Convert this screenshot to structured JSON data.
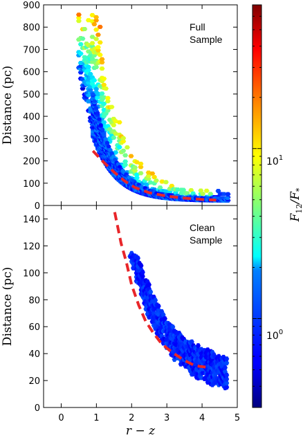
{
  "chart_data": [
    {
      "panel": "top",
      "type": "heatmap",
      "annotation": [
        "Full",
        "Sample"
      ],
      "xlabel": "",
      "ylabel": "Distance (pc)",
      "xlim": [
        -0.5,
        5
      ],
      "ylim": [
        0,
        900
      ],
      "yticks": [
        0,
        100,
        200,
        300,
        400,
        500,
        600,
        700,
        800,
        900
      ],
      "xticks": [
        0,
        1,
        2,
        3,
        4,
        5
      ],
      "show_xticklabels": false,
      "dashed_curve": {
        "color": "#e8262a",
        "x": [
          0.9,
          1.2,
          1.5,
          1.8,
          2.1,
          2.5,
          3.0,
          3.5,
          4.0,
          4.4
        ],
        "y": [
          245,
          195,
          150,
          110,
          80,
          57,
          42,
          33,
          27,
          24
        ]
      }
    },
    {
      "panel": "bottom",
      "type": "heatmap",
      "annotation": [
        "Clean",
        "Sample"
      ],
      "xlabel": "r − z",
      "ylabel": "Distance (pc)",
      "xlim": [
        -0.5,
        5
      ],
      "ylim": [
        0,
        150
      ],
      "yticks": [
        0,
        20,
        40,
        60,
        80,
        100,
        120,
        140
      ],
      "xticks": [
        0,
        1,
        2,
        3,
        4,
        5
      ],
      "show_xticklabels": true,
      "dashed_curve": {
        "color": "#e8262a",
        "x": [
          1.52,
          1.7,
          1.85,
          2.0,
          2.2,
          2.4,
          2.6,
          2.8,
          3.0,
          3.2,
          3.5,
          3.8,
          4.1
        ],
        "y": [
          145,
          122,
          108,
          91,
          76,
          64,
          56,
          49,
          44,
          40,
          35,
          31,
          30
        ]
      }
    }
  ],
  "colorbar": {
    "label": "F12/F*",
    "scale": "log",
    "range": [
      0.3,
      70
    ],
    "colormap": "jet",
    "tick_labels": [
      "10^0",
      "10^1"
    ],
    "tick_values": [
      1,
      10
    ]
  },
  "labels": {
    "colorbar_label_main": "F",
    "colorbar_label_sub": "12",
    "colorbar_label_div": "/F",
    "colorbar_label_star": "*",
    "cb_tick_0_base": "10",
    "cb_tick_0_exp": "0",
    "cb_tick_1_base": "10",
    "cb_tick_1_exp": "1"
  }
}
